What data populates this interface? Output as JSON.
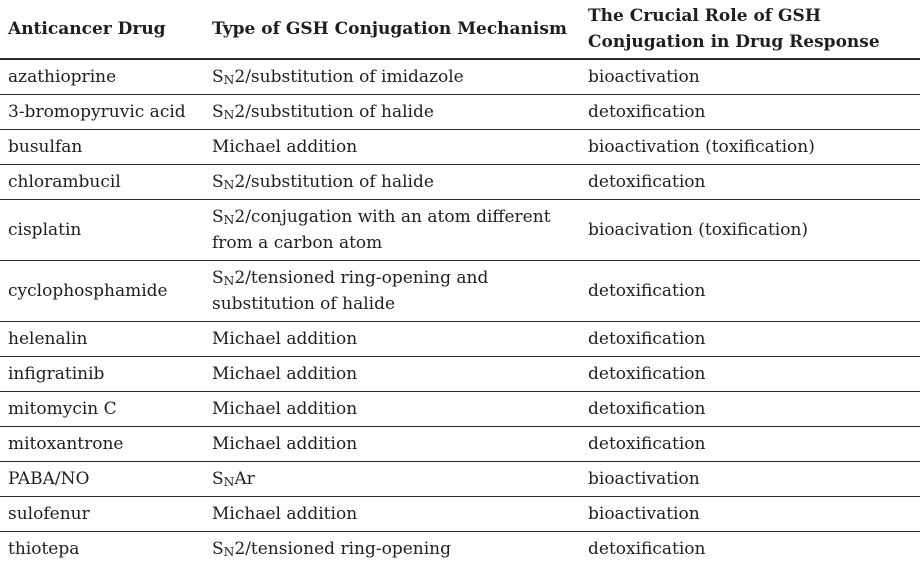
{
  "page": {
    "background_color": "#ffffff",
    "text_color": "#1e1e1e",
    "rule_color": "#2b2b2b"
  },
  "table": {
    "headers": [
      "Anticancer Drug",
      "Type of GSH Conjugation Mechanism",
      "The Crucial Role of GSH Conjugation in Drug Response"
    ],
    "subscript_marker": "~",
    "rows": [
      {
        "drug": "azathioprine",
        "mechanism": "S~N~2/substitution of imidazole",
        "role": "bioactivation"
      },
      {
        "drug": "3-bromopyruvic acid",
        "mechanism": "S~N~2/substitution of halide",
        "role": "detoxification"
      },
      {
        "drug": "busulfan",
        "mechanism": "Michael addition",
        "role": "bioactivation (toxification)"
      },
      {
        "drug": "chlorambucil",
        "mechanism": "S~N~2/substitution of halide",
        "role": "detoxification"
      },
      {
        "drug": "cisplatin",
        "mechanism": "S~N~2/conjugation with an atom different from a carbon atom",
        "role": "bioacivation (toxification)"
      },
      {
        "drug": "cyclophosphamide",
        "mechanism": "S~N~2/tensioned ring-opening and substitution of halide",
        "role": "detoxification"
      },
      {
        "drug": "helenalin",
        "mechanism": "Michael addition",
        "role": "detoxification"
      },
      {
        "drug": "infigratinib",
        "mechanism": "Michael addition",
        "role": "detoxification"
      },
      {
        "drug": "mitomycin C",
        "mechanism": "Michael addition",
        "role": "detoxification"
      },
      {
        "drug": "mitoxantrone",
        "mechanism": "Michael addition",
        "role": "detoxification"
      },
      {
        "drug": "PABA/NO",
        "mechanism": "S~N~Ar",
        "role": "bioactivation"
      },
      {
        "drug": "sulofenur",
        "mechanism": "Michael addition",
        "role": "bioactivation"
      },
      {
        "drug": "thiotepa",
        "mechanism": "S~N~2/tensioned ring-opening",
        "role": "detoxification"
      }
    ]
  }
}
